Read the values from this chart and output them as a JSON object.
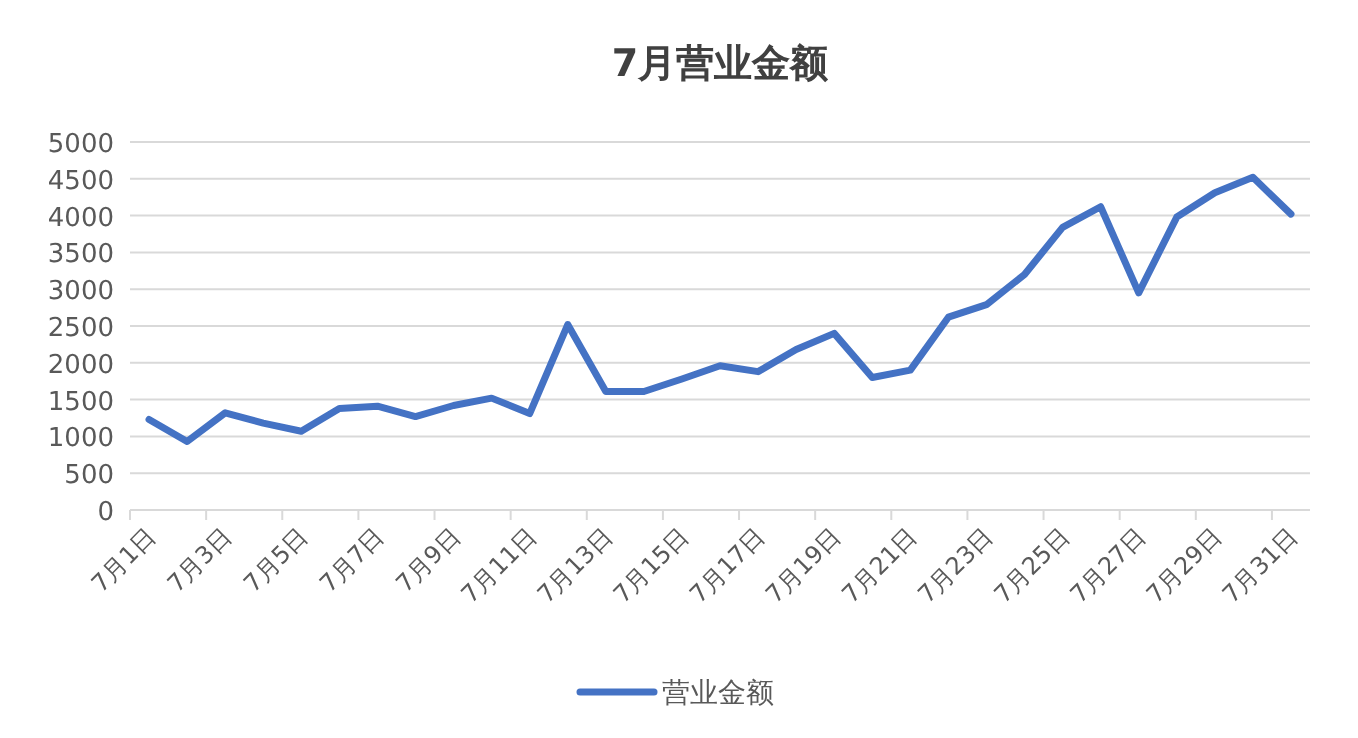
{
  "chart_data": {
    "type": "line",
    "title": "7月营业金额",
    "categories": [
      "7月1日",
      null,
      "7月3日",
      null,
      "7月5日",
      null,
      "7月7日",
      null,
      "7月9日",
      null,
      "7月11日",
      null,
      "7月13日",
      null,
      "7月15日",
      null,
      "7月17日",
      null,
      "7月19日",
      null,
      "7月21日",
      null,
      "7月23日",
      null,
      "7月25日",
      null,
      "7月27日",
      null,
      "7月29日",
      null,
      "7月31日"
    ],
    "series": [
      {
        "name": "营业金额",
        "color": "#4472c4",
        "values": [
          1230,
          930,
          1320,
          1180,
          1070,
          1380,
          1410,
          1270,
          1420,
          1520,
          1310,
          2520,
          1610,
          1610,
          1780,
          1960,
          1880,
          2180,
          2400,
          1800,
          1900,
          2620,
          2790,
          3200,
          3840,
          4120,
          2950,
          3980,
          4310,
          4520,
          4020
        ]
      }
    ],
    "ylim": [
      0,
      5000
    ],
    "yticks": [
      0,
      500,
      1000,
      1500,
      2000,
      2500,
      3000,
      3500,
      4000,
      4500,
      5000
    ],
    "grid": "y",
    "legend": "bottom",
    "marker": "none",
    "line_style": "solid"
  }
}
